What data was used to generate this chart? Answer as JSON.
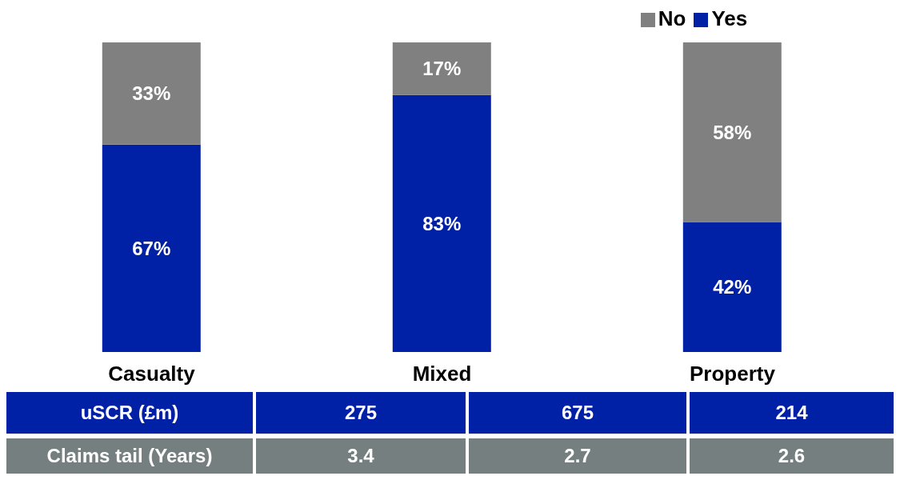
{
  "chart_data": {
    "type": "bar",
    "stacked": true,
    "categories": [
      "Casualty",
      "Mixed",
      "Property"
    ],
    "series": [
      {
        "name": "Yes",
        "color": "#0021a5",
        "values": [
          67,
          83,
          42
        ],
        "value_labels": [
          "67%",
          "83%",
          "42%"
        ]
      },
      {
        "name": "No",
        "color": "#808080",
        "values": [
          33,
          17,
          58
        ],
        "value_labels": [
          "33%",
          "17%",
          "58%"
        ]
      }
    ],
    "ylim": [
      0,
      100
    ],
    "tick_labels": "x",
    "legend": "top",
    "grid": false,
    "annotations": [
      "uSCR (£m)",
      "275",
      "675",
      "214",
      "Claims tail (Years)",
      "3.4",
      "2.7",
      "2.6"
    ]
  }
}
